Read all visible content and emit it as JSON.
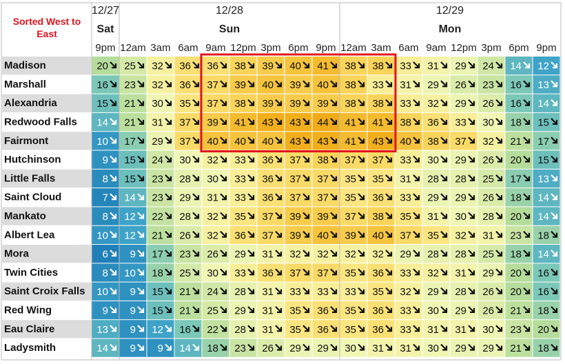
{
  "header": {
    "corner": "Sorted West to East",
    "groups": [
      {
        "date": "12/27",
        "day": "Sat",
        "times": [
          "9pm"
        ]
      },
      {
        "date": "12/28",
        "day": "Sun",
        "times": [
          "12am",
          "3am",
          "6am",
          "9am",
          "12pm",
          "3pm",
          "6pm",
          "9pm"
        ]
      },
      {
        "date": "12/29",
        "day": "Mon",
        "times": [
          "12am",
          "3am",
          "6am",
          "9am",
          "12pm",
          "3pm",
          "6pm",
          "9pm"
        ]
      }
    ]
  },
  "table": {
    "rows": [
      {
        "name": "Madison",
        "temps": [
          20,
          25,
          32,
          36,
          36,
          38,
          39,
          40,
          41,
          38,
          38,
          33,
          31,
          29,
          24,
          14,
          12
        ]
      },
      {
        "name": "Marshall",
        "temps": [
          16,
          23,
          32,
          36,
          37,
          39,
          40,
          39,
          40,
          38,
          33,
          31,
          29,
          26,
          23,
          16,
          13
        ]
      },
      {
        "name": "Alexandria",
        "temps": [
          15,
          21,
          30,
          35,
          37,
          38,
          39,
          39,
          39,
          38,
          38,
          33,
          32,
          29,
          26,
          16,
          14
        ]
      },
      {
        "name": "Redwood Falls",
        "temps": [
          14,
          21,
          31,
          37,
          39,
          41,
          43,
          43,
          44,
          41,
          41,
          38,
          36,
          33,
          30,
          18,
          15
        ]
      },
      {
        "name": "Fairmont",
        "temps": [
          10,
          17,
          29,
          37,
          40,
          40,
          40,
          43,
          43,
          41,
          43,
          40,
          38,
          37,
          32,
          21,
          17
        ]
      },
      {
        "name": "Hutchinson",
        "temps": [
          9,
          15,
          24,
          30,
          32,
          33,
          36,
          37,
          38,
          37,
          37,
          33,
          30,
          29,
          26,
          20,
          15
        ]
      },
      {
        "name": "Little Falls",
        "temps": [
          8,
          15,
          23,
          28,
          30,
          33,
          36,
          37,
          37,
          35,
          35,
          31,
          28,
          28,
          25,
          17,
          13
        ]
      },
      {
        "name": "Saint Cloud",
        "temps": [
          7,
          14,
          23,
          29,
          31,
          33,
          36,
          37,
          37,
          35,
          36,
          33,
          29,
          29,
          26,
          18,
          14
        ]
      },
      {
        "name": "Mankato",
        "temps": [
          8,
          12,
          22,
          28,
          32,
          35,
          37,
          39,
          39,
          37,
          38,
          35,
          31,
          30,
          28,
          20,
          14
        ]
      },
      {
        "name": "Albert Lea",
        "temps": [
          10,
          12,
          21,
          26,
          32,
          36,
          37,
          39,
          40,
          39,
          40,
          37,
          35,
          32,
          31,
          23,
          18
        ]
      },
      {
        "name": "Mora",
        "temps": [
          6,
          9,
          17,
          23,
          26,
          29,
          31,
          32,
          32,
          32,
          32,
          29,
          28,
          28,
          25,
          18,
          14
        ]
      },
      {
        "name": "Twin Cities",
        "temps": [
          8,
          10,
          18,
          25,
          30,
          33,
          36,
          37,
          37,
          35,
          36,
          33,
          32,
          31,
          29,
          20,
          16
        ]
      },
      {
        "name": "Saint Croix Falls",
        "temps": [
          10,
          9,
          15,
          21,
          24,
          28,
          31,
          33,
          33,
          33,
          35,
          32,
          29,
          28,
          26,
          20,
          16
        ]
      },
      {
        "name": "Red Wing",
        "temps": [
          9,
          9,
          15,
          21,
          25,
          29,
          31,
          35,
          36,
          35,
          36,
          33,
          30,
          29,
          26,
          21,
          18
        ]
      },
      {
        "name": "Eau Claire",
        "temps": [
          13,
          9,
          12,
          16,
          22,
          28,
          31,
          35,
          36,
          35,
          36,
          33,
          31,
          31,
          30,
          23,
          20
        ]
      },
      {
        "name": "Ladysmith",
        "temps": [
          14,
          9,
          9,
          14,
          18,
          23,
          26,
          29,
          29,
          30,
          31,
          31,
          30,
          29,
          29,
          21,
          18
        ]
      }
    ]
  }
}
